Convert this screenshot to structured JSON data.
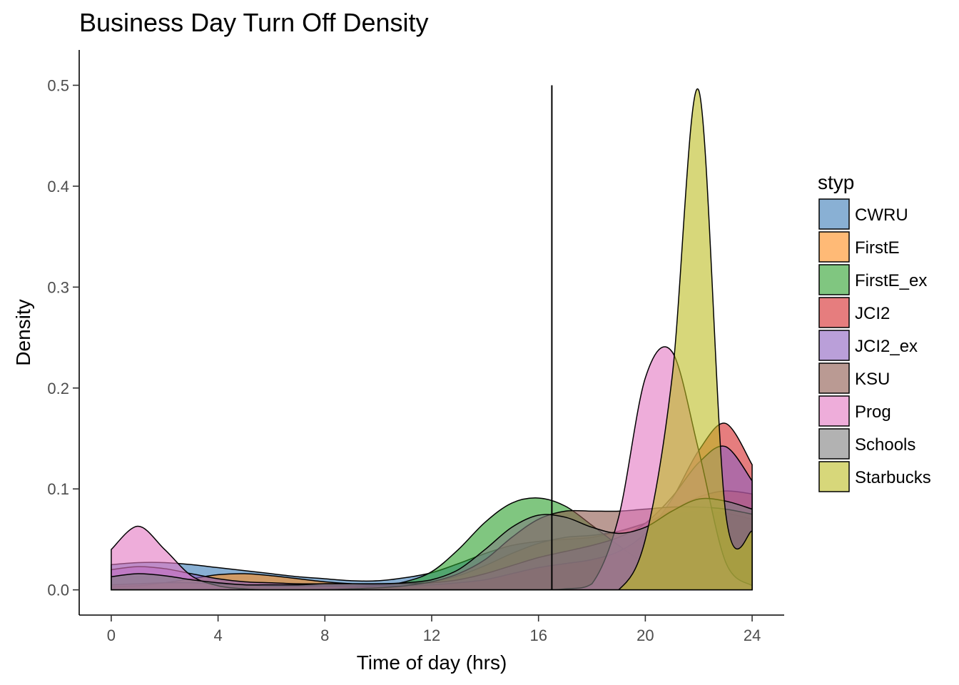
{
  "chart_data": {
    "type": "area",
    "subtype": "density",
    "title": "Business Day Turn Off Density",
    "xlabel": "Time of day (hrs)",
    "ylabel": "Density",
    "xlim": [
      -1.2,
      25.2
    ],
    "ylim": [
      -0.025,
      0.535
    ],
    "xticks": [
      0,
      4,
      8,
      12,
      16,
      20,
      24
    ],
    "yticks": [
      0.0,
      0.1,
      0.2,
      0.3,
      0.4,
      0.5
    ],
    "ytick_labels": [
      "0.0",
      "0.1",
      "0.2",
      "0.3",
      "0.4",
      "0.5"
    ],
    "grid": false,
    "legend": {
      "title": "styp",
      "position": "right"
    },
    "reference_line": {
      "x": 16.5,
      "y_from": 0,
      "y_to": 0.5
    },
    "x": [
      0,
      1,
      2,
      3,
      4,
      5,
      6,
      7,
      8,
      9,
      10,
      11,
      12,
      13,
      14,
      15,
      16,
      17,
      18,
      19,
      20,
      21,
      22,
      23,
      24
    ],
    "series": [
      {
        "name": "CWRU",
        "color": "#3b7bb8",
        "values": [
          0.025,
          0.027,
          0.027,
          0.025,
          0.022,
          0.019,
          0.016,
          0.013,
          0.011,
          0.009,
          0.009,
          0.012,
          0.017,
          0.026,
          0.036,
          0.044,
          0.048,
          0.05,
          0.052,
          0.058,
          0.066,
          0.074,
          0.078,
          0.076,
          0.07
        ]
      },
      {
        "name": "FirstE",
        "color": "#ff8c1a",
        "values": [
          0.003,
          0.004,
          0.007,
          0.011,
          0.015,
          0.016,
          0.014,
          0.011,
          0.008,
          0.006,
          0.005,
          0.006,
          0.008,
          0.014,
          0.024,
          0.036,
          0.046,
          0.052,
          0.054,
          0.058,
          0.066,
          0.079,
          0.092,
          0.098,
          0.095
        ]
      },
      {
        "name": "FirstE_ex",
        "color": "#2ca02c",
        "values": [
          0.0,
          0.0,
          0.0,
          0.0,
          0.0,
          0.0,
          0.0,
          0.0,
          0.001,
          0.002,
          0.004,
          0.008,
          0.018,
          0.04,
          0.067,
          0.086,
          0.091,
          0.083,
          0.064,
          0.044,
          0.026,
          0.014,
          0.008,
          0.004,
          0.002
        ]
      },
      {
        "name": "JCI2",
        "color": "#d62728",
        "values": [
          0.005,
          0.006,
          0.007,
          0.007,
          0.006,
          0.005,
          0.004,
          0.004,
          0.004,
          0.004,
          0.004,
          0.004,
          0.005,
          0.007,
          0.01,
          0.016,
          0.022,
          0.026,
          0.03,
          0.038,
          0.056,
          0.09,
          0.138,
          0.165,
          0.124
        ]
      },
      {
        "name": "JCI2_ex",
        "color": "#8c5fbf",
        "values": [
          0.02,
          0.023,
          0.021,
          0.016,
          0.011,
          0.008,
          0.007,
          0.006,
          0.006,
          0.006,
          0.006,
          0.006,
          0.007,
          0.01,
          0.016,
          0.024,
          0.032,
          0.038,
          0.044,
          0.052,
          0.066,
          0.092,
          0.126,
          0.142,
          0.108
        ]
      },
      {
        "name": "KSU",
        "color": "#8c564b",
        "values": [
          0.0,
          0.0,
          0.0,
          0.0,
          0.0,
          0.0,
          0.0,
          0.0,
          0.0,
          0.001,
          0.002,
          0.004,
          0.008,
          0.016,
          0.03,
          0.052,
          0.07,
          0.078,
          0.078,
          0.078,
          0.08,
          0.082,
          0.082,
          0.08,
          0.075
        ]
      },
      {
        "name": "Prog",
        "color": "#e377c2",
        "values": [
          0.04,
          0.063,
          0.04,
          0.014,
          0.004,
          0.001,
          0.0,
          0.0,
          0.0,
          0.0,
          0.0,
          0.0,
          0.0,
          0.0,
          0.0,
          0.0,
          0.0,
          0.001,
          0.006,
          0.072,
          0.21,
          0.236,
          0.138,
          0.028,
          0.004
        ]
      },
      {
        "name": "Schools",
        "color": "#7f7f7f",
        "values": [
          0.013,
          0.016,
          0.014,
          0.01,
          0.007,
          0.005,
          0.005,
          0.005,
          0.006,
          0.006,
          0.006,
          0.007,
          0.01,
          0.02,
          0.04,
          0.062,
          0.074,
          0.072,
          0.062,
          0.056,
          0.062,
          0.078,
          0.09,
          0.088,
          0.08
        ]
      },
      {
        "name": "Starbucks",
        "color": "#bcbd22",
        "values": [
          0.0,
          0.0,
          0.0,
          0.0,
          0.0,
          0.0,
          0.0,
          0.0,
          0.0,
          0.0,
          0.0,
          0.0,
          0.0,
          0.0,
          0.0,
          0.0,
          0.0,
          0.0,
          0.0,
          0.0,
          0.05,
          0.21,
          0.495,
          0.078,
          0.058
        ]
      }
    ]
  }
}
